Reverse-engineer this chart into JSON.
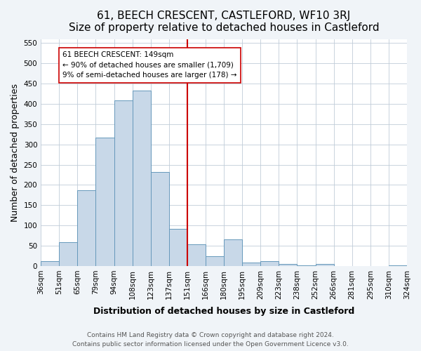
{
  "title": "61, BEECH CRESCENT, CASTLEFORD, WF10 3RJ",
  "subtitle": "Size of property relative to detached houses in Castleford",
  "xlabel": "Distribution of detached houses by size in Castleford",
  "ylabel": "Number of detached properties",
  "bin_labels": [
    "36sqm",
    "51sqm",
    "65sqm",
    "79sqm",
    "94sqm",
    "108sqm",
    "123sqm",
    "137sqm",
    "151sqm",
    "166sqm",
    "180sqm",
    "195sqm",
    "209sqm",
    "223sqm",
    "238sqm",
    "252sqm",
    "266sqm",
    "281sqm",
    "295sqm",
    "310sqm",
    "324sqm"
  ],
  "bar_heights": [
    12,
    58,
    187,
    316,
    408,
    432,
    232,
    92,
    53,
    24,
    65,
    8,
    12,
    5,
    2,
    5,
    0,
    0,
    0,
    2
  ],
  "bar_color": "#c8d8e8",
  "bar_edge_color": "#6699bb",
  "vline_x": 8,
  "vline_color": "#cc0000",
  "annotation_text": "61 BEECH CRESCENT: 149sqm\n← 90% of detached houses are smaller (1,709)\n9% of semi-detached houses are larger (178) →",
  "annotation_box_color": "#ffffff",
  "annotation_box_edge_color": "#cc0000",
  "ylim": [
    0,
    560
  ],
  "yticks": [
    0,
    50,
    100,
    150,
    200,
    250,
    300,
    350,
    400,
    450,
    500,
    550
  ],
  "footnote": "Contains HM Land Registry data © Crown copyright and database right 2024.\nContains public sector information licensed under the Open Government Licence v3.0.",
  "bg_color": "#f0f4f8",
  "plot_bg_color": "#ffffff",
  "title_fontsize": 11,
  "xlabel_fontsize": 9,
  "ylabel_fontsize": 9,
  "tick_fontsize": 7.5,
  "footnote_fontsize": 6.5
}
